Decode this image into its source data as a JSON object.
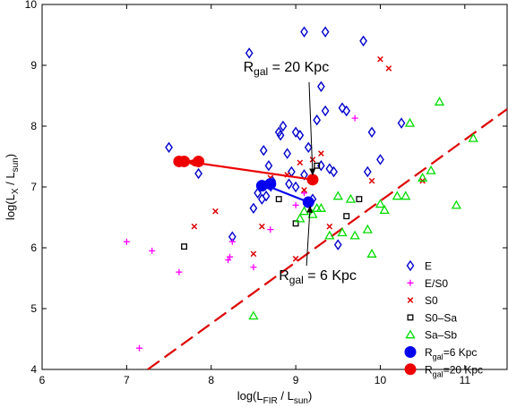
{
  "chart_data": {
    "type": "scatter",
    "title": "",
    "xlabel": "log(L_FIR / L_sun)",
    "ylabel": "log(L_X / L_sun)",
    "xlim": [
      6,
      11.5
    ],
    "ylim": [
      4,
      10
    ],
    "xticks": [
      "6",
      "7",
      "8",
      "9",
      "10",
      "11"
    ],
    "yticks": [
      "4",
      "5",
      "6",
      "7",
      "8",
      "9",
      "10"
    ],
    "grid": false,
    "legend_position": "bottom-right",
    "colors": {
      "E": "#0000cc",
      "E_S0": "#ff00ff",
      "S0": "#dd0000",
      "S0_Sa": "#000000",
      "Sa_Sb": "#00dd00",
      "Rgal6": "#0000ee",
      "Rgal20": "#ee0000",
      "relation": "#dd0000"
    },
    "series": [
      {
        "key": "E",
        "legend_main": "E",
        "legend_sub": "",
        "legend_tail": "",
        "marker": "diamond",
        "x": [
          7.5,
          7.85,
          8.25,
          8.45,
          8.5,
          8.55,
          8.6,
          8.62,
          8.65,
          8.68,
          8.72,
          8.8,
          8.82,
          8.85,
          8.9,
          8.92,
          8.95,
          9.0,
          9.0,
          9.05,
          9.1,
          9.1,
          9.15,
          9.2,
          9.25,
          9.3,
          9.3,
          9.35,
          9.35,
          9.4,
          9.45,
          9.5,
          9.55,
          9.6,
          9.8,
          9.85,
          9.9,
          10.0,
          10.25
        ],
        "y": [
          7.65,
          7.22,
          6.18,
          9.2,
          6.65,
          6.9,
          6.8,
          7.6,
          6.85,
          7.35,
          7.1,
          7.9,
          7.85,
          8.0,
          7.55,
          7.05,
          7.25,
          7.9,
          7.0,
          7.85,
          9.55,
          7.2,
          7.65,
          6.8,
          8.1,
          8.65,
          7.35,
          9.55,
          8.25,
          7.3,
          7.25,
          6.05,
          8.3,
          8.25,
          9.4,
          7.25,
          7.9,
          7.45,
          8.05
        ]
      },
      {
        "key": "E_S0",
        "legend_main": "E/S0",
        "legend_sub": "",
        "legend_tail": "",
        "marker": "plus",
        "x": [
          7.0,
          7.15,
          7.3,
          7.62,
          8.2,
          8.22,
          8.25,
          8.5,
          8.7,
          9.0,
          9.1,
          9.7
        ],
        "y": [
          6.1,
          4.35,
          5.95,
          5.6,
          5.8,
          5.85,
          6.1,
          5.68,
          6.3,
          6.7,
          6.9,
          8.13
        ]
      },
      {
        "key": "S0",
        "legend_main": "S0",
        "legend_sub": "",
        "legend_tail": "",
        "marker": "cross",
        "x": [
          7.8,
          8.05,
          8.5,
          8.6,
          8.7,
          8.9,
          9.0,
          9.05,
          9.1,
          9.2,
          9.3,
          9.4,
          9.9,
          10.0,
          10.1,
          10.5
        ],
        "y": [
          6.35,
          6.6,
          5.9,
          6.35,
          7.15,
          7.2,
          5.82,
          7.4,
          6.95,
          7.45,
          7.55,
          6.35,
          7.1,
          9.1,
          8.95,
          7.1
        ]
      },
      {
        "key": "S0_Sa",
        "legend_main": "S0–Sa",
        "legend_sub": "",
        "legend_tail": "",
        "marker": "square",
        "x": [
          7.68,
          8.8,
          9.0,
          9.25,
          9.6,
          9.75
        ],
        "y": [
          6.02,
          6.8,
          6.4,
          7.35,
          6.52,
          6.8
        ]
      },
      {
        "key": "Sa_Sb",
        "legend_main": "Sa–Sb",
        "legend_sub": "",
        "legend_tail": "",
        "marker": "triangle",
        "x": [
          8.5,
          9.05,
          9.1,
          9.2,
          9.25,
          9.3,
          9.4,
          9.5,
          9.55,
          9.65,
          9.7,
          9.85,
          9.9,
          10.0,
          10.05,
          10.2,
          10.3,
          10.35,
          10.5,
          10.6,
          10.7,
          10.9,
          11.1
        ],
        "y": [
          4.88,
          6.48,
          6.6,
          6.55,
          6.65,
          6.65,
          6.2,
          6.85,
          6.25,
          6.8,
          6.2,
          6.3,
          5.9,
          6.72,
          6.62,
          6.85,
          6.85,
          8.05,
          7.15,
          7.27,
          8.4,
          6.7,
          7.8
        ]
      },
      {
        "key": "Rgal6",
        "legend_main": "R",
        "legend_sub": "gal",
        "legend_tail": "=6 Kpc",
        "marker": "dot",
        "x": [
          8.6,
          8.7,
          9.15
        ],
        "y": [
          7.02,
          7.05,
          6.75
        ]
      },
      {
        "key": "Rgal20",
        "legend_main": "R",
        "legend_sub": "gal",
        "legend_tail": "=20 Kpc",
        "marker": "dot",
        "x": [
          7.62,
          7.68,
          7.85,
          9.2
        ],
        "y": [
          7.42,
          7.42,
          7.42,
          7.12
        ]
      }
    ],
    "arrows": [
      {
        "key": "Rgal6",
        "from": [
          9.15,
          6.75
        ],
        "to": [
          8.62,
          7.04
        ]
      },
      {
        "key": "Rgal20",
        "from": [
          9.2,
          7.12
        ],
        "to": [
          7.7,
          7.42
        ]
      }
    ],
    "relation_line": {
      "from": [
        7.25,
        4.0
      ],
      "to": [
        11.5,
        8.28
      ]
    },
    "annotations": [
      {
        "key": "r20",
        "main": "R",
        "sub": "gal",
        "tail": " = 20 Kpc",
        "at": [
          8.38,
          8.9
        ],
        "arrow_to": [
          9.2,
          7.2
        ]
      },
      {
        "key": "r6",
        "main": "R",
        "sub": "gal",
        "tail": " = 6 Kpc",
        "at": [
          8.8,
          5.47
        ],
        "arrow_to": [
          9.17,
          6.68
        ]
      }
    ]
  }
}
